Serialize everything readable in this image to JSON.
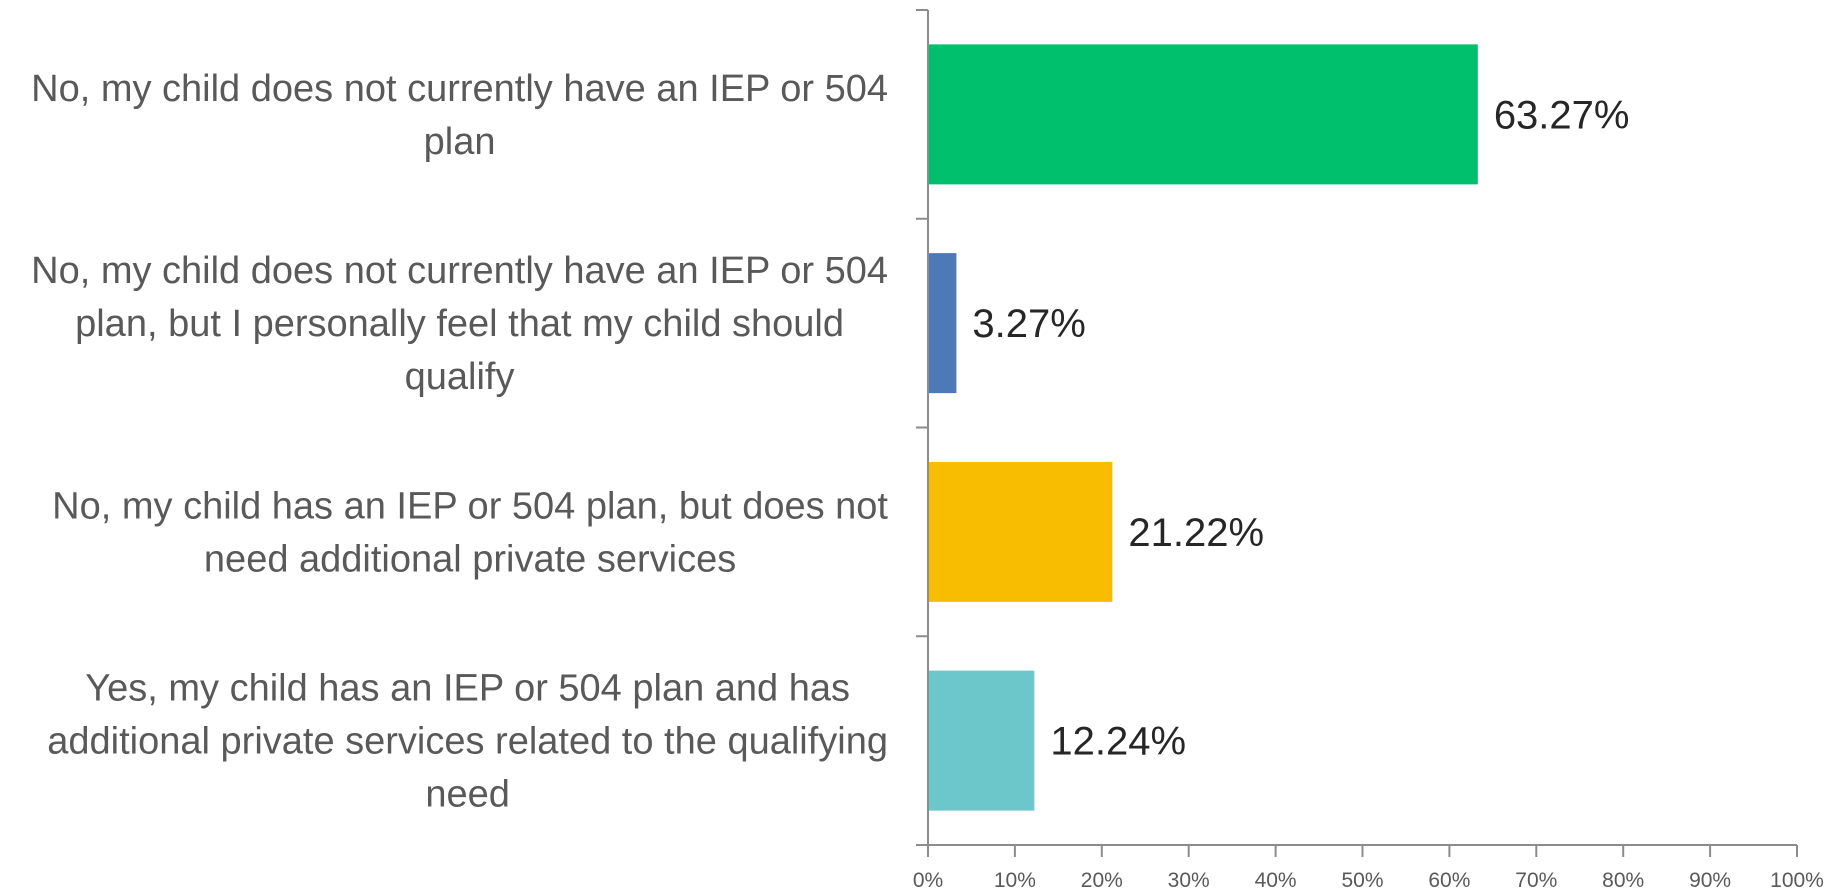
{
  "chart_data": {
    "type": "bar",
    "orientation": "horizontal",
    "categories": [
      {
        "label_lines": [
          "No, my child does not currently have an IEP or 504",
          "plan"
        ],
        "value": 63.27,
        "value_label": "63.27%",
        "color": "#00C06E"
      },
      {
        "label_lines": [
          "No, my child does not currently have an IEP or 504",
          "plan, but I personally feel that my child should",
          "qualify"
        ],
        "value": 3.27,
        "value_label": "3.27%",
        "color": "#4E79B7"
      },
      {
        "label_lines": [
          "No, my child has an IEP or 504 plan, but does not",
          "need additional private services"
        ],
        "value": 21.22,
        "value_label": "21.22%",
        "color": "#F8BC00"
      },
      {
        "label_lines": [
          "Yes, my child has an IEP or 504 plan and has",
          "additional private services related to the qualifying",
          "need"
        ],
        "value": 12.24,
        "value_label": "12.24%",
        "color": "#6CC7CB"
      }
    ],
    "x_ticks": [
      "0%",
      "10%",
      "20%",
      "30%",
      "40%",
      "50%",
      "60%",
      "70%",
      "80%",
      "90%",
      "100%"
    ],
    "xlim": [
      0,
      100
    ],
    "grid": false,
    "legend": "none"
  }
}
